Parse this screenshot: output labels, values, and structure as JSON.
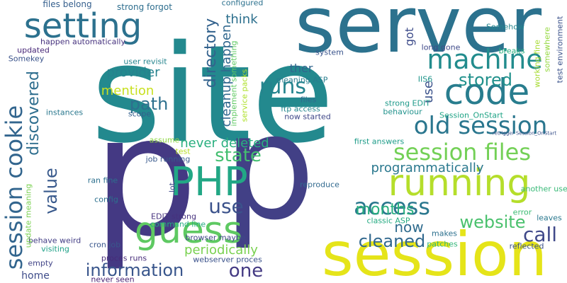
{
  "words": [
    {
      "text": "site",
      "color": "#23898e",
      "v": false
    },
    {
      "text": "p",
      "color": "#443983",
      "v": false
    },
    {
      "text": "p",
      "color": "#424086",
      "v": false
    },
    {
      "text": "server",
      "color": "#2c728e",
      "v": false
    },
    {
      "text": "session",
      "color": "#e5e419",
      "v": false
    },
    {
      "text": "setting",
      "color": "#2c718e",
      "v": false
    },
    {
      "text": "code",
      "color": "#287d8e",
      "v": false
    },
    {
      "text": "PHP",
      "color": "#22a785",
      "v": false
    },
    {
      "text": "guess",
      "color": "#5ec962",
      "v": false
    },
    {
      "text": "running",
      "color": "#b5de2b",
      "v": false
    },
    {
      "text": "machine",
      "color": "#228c8d",
      "v": false
    },
    {
      "text": "old session",
      "color": "#2a768e",
      "v": false
    },
    {
      "text": "session files",
      "color": "#73d056",
      "v": false
    },
    {
      "text": "session cookie",
      "color": "#32658e",
      "v": true
    },
    {
      "text": "runs",
      "color": "#25848e",
      "v": false
    },
    {
      "text": "access",
      "color": "#2a778e",
      "v": false
    },
    {
      "text": "state",
      "color": "#44bf70",
      "v": false
    },
    {
      "text": "path",
      "color": "#2d708e",
      "v": false
    },
    {
      "text": "use",
      "color": "#3b528b",
      "v": false
    },
    {
      "text": "call",
      "color": "#3f4889",
      "v": false
    },
    {
      "text": "one",
      "color": "#443a83",
      "v": false
    },
    {
      "text": "information",
      "color": "#39568c",
      "v": false
    },
    {
      "text": "website",
      "color": "#4ac16d",
      "v": false
    },
    {
      "text": "stored",
      "color": "#21918c",
      "v": false
    },
    {
      "text": "cleaned",
      "color": "#31688e",
      "v": false
    },
    {
      "text": "months",
      "color": "#29af7f",
      "v": false
    },
    {
      "text": "value",
      "color": "#38598c",
      "v": true
    },
    {
      "text": "discovered",
      "color": "#2e6e8e",
      "v": true
    },
    {
      "text": "directory",
      "color": "#33628d",
      "v": true
    },
    {
      "text": "programmatically",
      "color": "#2a788e",
      "v": false
    },
    {
      "text": "now",
      "color": "#2f6c8e",
      "v": false
    },
    {
      "text": "periodically",
      "color": "#7ad151",
      "v": false
    },
    {
      "text": "never deleted",
      "color": "#29af7f",
      "v": false
    },
    {
      "text": "mention",
      "color": "#c8e020",
      "v": false
    },
    {
      "text": "provider",
      "color": "#26828e",
      "v": false
    },
    {
      "text": "think",
      "color": "#2d708e",
      "v": false
    },
    {
      "text": "cleanup happen",
      "color": "#31688e",
      "v": true
    },
    {
      "text": "use",
      "color": "#3b528b",
      "v": true
    },
    {
      "text": "ther",
      "color": "#32658e",
      "v": false
    },
    {
      "text": "got",
      "color": "#3e4c8a",
      "v": true
    },
    {
      "text": "files belong",
      "color": "#355f8d",
      "v": false
    },
    {
      "text": "strong forgot",
      "color": "#2e6e8e",
      "v": false
    },
    {
      "text": "home",
      "color": "#3e4c8a",
      "v": false
    },
    {
      "text": "ftp access",
      "color": "#24878e",
      "v": false
    },
    {
      "text": "IIS6",
      "color": "#1f958b",
      "v": false
    },
    {
      "text": "Session_OnStart",
      "color": "#20a486",
      "v": false
    },
    {
      "text": "command line",
      "color": "#25ac82",
      "v": false
    },
    {
      "text": "webserver proces",
      "color": "#3b528b",
      "v": false
    },
    {
      "text": "instances",
      "color": "#2a788e",
      "v": false
    },
    {
      "text": "job running",
      "color": "#38598c",
      "v": false
    },
    {
      "text": "configured",
      "color": "#2c718e",
      "v": false
    },
    {
      "text": "happen automatically",
      "color": "#46327e",
      "v": false
    },
    {
      "text": "Somehow",
      "color": "#24868e",
      "v": false
    },
    {
      "text": "another user",
      "color": "#38b977",
      "v": false
    },
    {
      "text": "reproduce",
      "color": "#30698e",
      "v": false
    },
    {
      "text": "first answers",
      "color": "#1e9c89",
      "v": false
    },
    {
      "text": "breaks",
      "color": "#29af7f",
      "v": false
    },
    {
      "text": "EDIT strong",
      "color": "#46327e",
      "v": false
    },
    {
      "text": "browser maybe",
      "color": "#3f4788",
      "v": false
    },
    {
      "text": "classic ASP",
      "color": "#25ab82",
      "v": false
    },
    {
      "text": "user revisit",
      "color": "#25858e",
      "v": false
    },
    {
      "text": "system",
      "color": "#3a548c",
      "v": false
    },
    {
      "text": "updated",
      "color": "#482878",
      "v": false
    },
    {
      "text": "behave weird",
      "color": "#433e85",
      "v": false
    },
    {
      "text": "visiting",
      "color": "#1fa187",
      "v": false
    },
    {
      "text": "empty",
      "color": "#414487",
      "v": false
    },
    {
      "text": "proces runs",
      "color": "#472c7a",
      "v": false
    },
    {
      "text": "cron job",
      "color": "#39568c",
      "v": false
    },
    {
      "text": "config",
      "color": "#2d708e",
      "v": false
    },
    {
      "text": "ran fine",
      "color": "#2d708e",
      "v": false
    },
    {
      "text": "scope",
      "color": "#355f8d",
      "v": false
    },
    {
      "text": "assume",
      "color": "#8fd744",
      "v": false
    },
    {
      "text": "never seen",
      "color": "#482475",
      "v": false
    },
    {
      "text": "makes",
      "color": "#2d718e",
      "v": false
    },
    {
      "text": "patches",
      "color": "#35b779",
      "v": false
    },
    {
      "text": "reflected",
      "color": "#3b528b",
      "v": false
    },
    {
      "text": "leaves",
      "color": "#2a788e",
      "v": false
    },
    {
      "text": "error",
      "color": "#3dbc74",
      "v": false
    },
    {
      "text": "behaviour",
      "color": "#20928c",
      "v": false
    },
    {
      "text": "strong EDIT",
      "color": "#1f9a8a",
      "v": false
    },
    {
      "text": "now started",
      "color": "#3f4788",
      "v": false
    },
    {
      "text": "files",
      "color": "#306a8e",
      "v": false
    },
    {
      "text": "meaning ASP",
      "color": "#287d8e",
      "v": false
    },
    {
      "text": "long gone",
      "color": "#3e4989",
      "v": false
    },
    {
      "text": "Somekey",
      "color": "#3a538b",
      "v": false
    },
    {
      "text": "service packs",
      "color": "#ade028",
      "v": true
    },
    {
      "text": "implement something",
      "color": "#5ec962",
      "v": true
    },
    {
      "text": "working fine",
      "color": "#a8db34",
      "v": true
    },
    {
      "text": "somewhere",
      "color": "#95d840",
      "v": true
    },
    {
      "text": "test environment",
      "color": "#3b528b",
      "v": true
    },
    {
      "text": "update meaning",
      "color": "#7ad151",
      "v": true
    },
    {
      "text": "lot",
      "color": "#3e4a89",
      "v": true
    },
    {
      "text": "test",
      "color": "#b8de29",
      "v": false
    },
    {
      "text": "retrigger Session_OnStart",
      "color": "#3b528b",
      "v": false
    }
  ]
}
